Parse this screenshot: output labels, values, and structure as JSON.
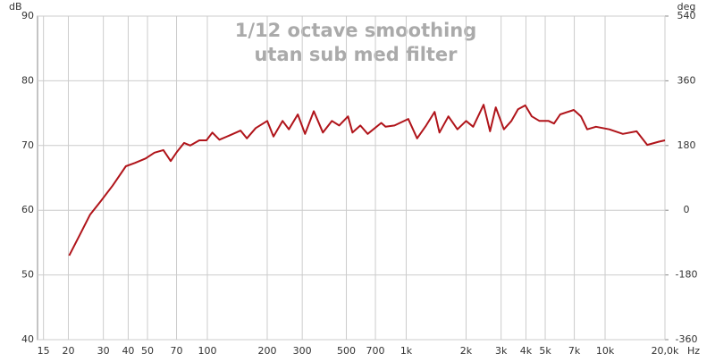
{
  "chart_data": {
    "type": "line",
    "title": "1/12 octave smoothing",
    "subtitle": "utan sub med filter",
    "y_label": "dB",
    "y2_label": "deg",
    "x_label": "Hz",
    "x_scale": "log",
    "grid": true,
    "xlim": [
      14,
      20000
    ],
    "ylim": [
      40,
      90
    ],
    "y2lim": [
      -360,
      540
    ],
    "xticks": [
      15,
      20,
      30,
      40,
      50,
      70,
      100,
      200,
      300,
      500,
      700,
      {
        "value": 1000,
        "label": "1k"
      },
      {
        "value": 2000,
        "label": "2k"
      },
      {
        "value": 3000,
        "label": "3k"
      },
      {
        "value": 4000,
        "label": "4k"
      },
      {
        "value": 5000,
        "label": "5k"
      },
      {
        "value": 7000,
        "label": "7k"
      },
      {
        "value": 10000,
        "label": "10k"
      },
      {
        "value": 20000,
        "label": "20,0k"
      }
    ],
    "yticks": [
      40,
      50,
      60,
      70,
      80,
      90
    ],
    "y2ticks": [
      -360,
      -180,
      0,
      180,
      360,
      540
    ],
    "series": [
      {
        "color": "#b0141a",
        "x": [
          20.2,
          23.2,
          25.7,
          29.1,
          33.4,
          38.9,
          43.2,
          48.9,
          54.2,
          60.1,
          65.4,
          70.3,
          76.4,
          82.1,
          91.1,
          99,
          106,
          115,
          128,
          147,
          158,
          175,
          200,
          215,
          239,
          257,
          285,
          310,
          343,
          381,
          423,
          460,
          510,
          537,
          588,
          640,
          749,
          787,
          873,
          1024,
          1135,
          1260,
          1390,
          1470,
          1630,
          1810,
          2000,
          2170,
          2450,
          2640,
          2820,
          3100,
          3380,
          3650,
          3970,
          4280,
          4680,
          5200,
          5540,
          5950,
          6960,
          7560,
          8130,
          9000,
          10500,
          12280,
          14400,
          16300,
          18660,
          20000
        ],
        "values": [
          53.0,
          56.6,
          59.3,
          61.4,
          63.8,
          66.8,
          67.3,
          68.0,
          68.9,
          69.3,
          67.6,
          69.0,
          70.4,
          70.0,
          70.8,
          70.8,
          72.0,
          70.9,
          71.5,
          72.3,
          71.1,
          72.7,
          73.8,
          71.4,
          73.8,
          72.5,
          74.8,
          71.8,
          75.3,
          72.0,
          73.8,
          73.1,
          74.5,
          72.0,
          73.1,
          71.8,
          73.5,
          72.9,
          73.1,
          74.1,
          71.1,
          73.1,
          75.2,
          72.0,
          74.5,
          72.5,
          73.8,
          72.9,
          76.3,
          72.2,
          75.9,
          72.5,
          73.8,
          75.6,
          76.2,
          74.5,
          73.8,
          73.8,
          73.4,
          74.8,
          75.5,
          74.5,
          72.5,
          72.9,
          72.5,
          71.8,
          72.2,
          70.1,
          70.6,
          70.8
        ]
      }
    ]
  }
}
